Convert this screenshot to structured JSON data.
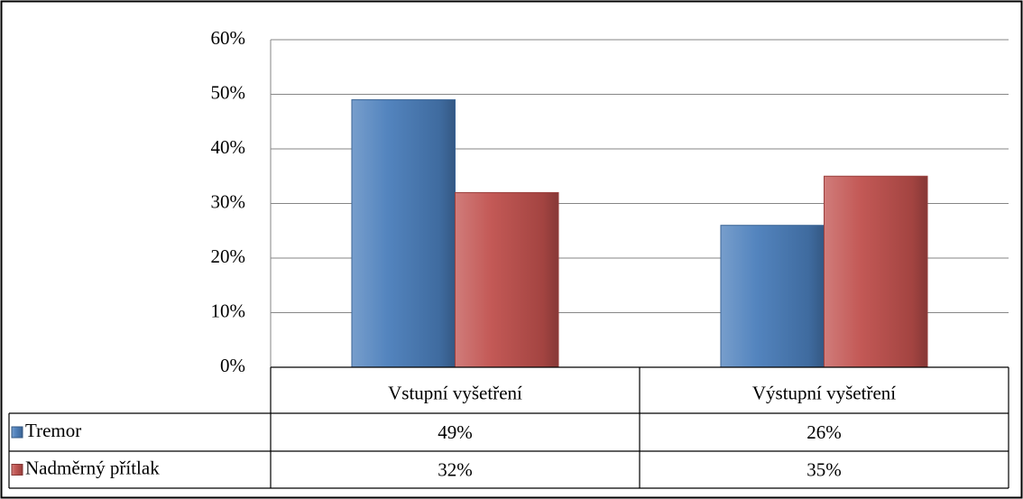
{
  "chart_data": {
    "type": "bar",
    "categories": [
      "Vstupní vyšetření",
      "Výstupní vyšetření"
    ],
    "series": [
      {
        "name": "Tremor",
        "color": "#4a7ebb",
        "values": [
          49,
          26
        ],
        "value_labels": [
          "49%",
          "26%"
        ]
      },
      {
        "name": "Nadměrný přítlak",
        "color": "#c0504d",
        "values": [
          32,
          35
        ],
        "value_labels": [
          "32%",
          "35%"
        ]
      }
    ],
    "ylim": [
      0,
      60
    ],
    "yticks": [
      {
        "value": 0,
        "label": "0%"
      },
      {
        "value": 10,
        "label": "10%"
      },
      {
        "value": 20,
        "label": "20%"
      },
      {
        "value": 30,
        "label": "30%"
      },
      {
        "value": 40,
        "label": "40%"
      },
      {
        "value": 50,
        "label": "50%"
      },
      {
        "value": 60,
        "label": "60%"
      }
    ],
    "grid": true
  }
}
